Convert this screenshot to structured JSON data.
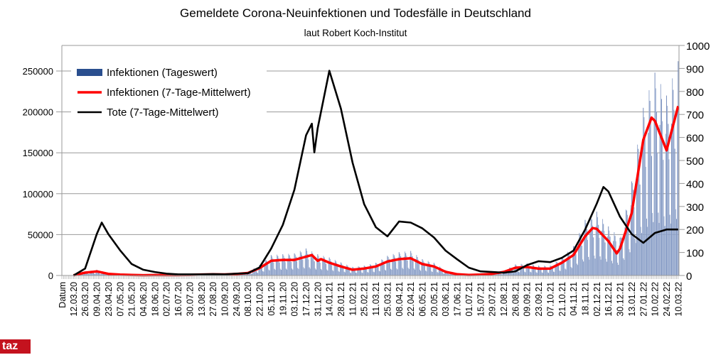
{
  "chart_data": {
    "type": "bar+line",
    "title": "Gemeldete Corona-Neuinfektionen und Todesfälle in Deutschland",
    "subtitle": "laut Robert Koch-Institut",
    "xlabel": "Datum",
    "xlim": [
      "27.02.20",
      "11.03.22"
    ],
    "ylim_left": [
      0,
      281250
    ],
    "ylim_right": [
      0,
      1000
    ],
    "yticks_left": [
      0,
      50000,
      100000,
      150000,
      200000,
      250000
    ],
    "yticks_right": [
      0,
      100,
      200,
      300,
      400,
      500,
      600,
      700,
      800,
      900,
      1000
    ],
    "xticks": [
      "12.03.20",
      "26.03.20",
      "09.04.20",
      "23.04.20",
      "07.05.20",
      "21.05.20",
      "04.06.20",
      "18.06.20",
      "02.07.20",
      "16.07.20",
      "30.07.20",
      "13.08.20",
      "27.08.20",
      "10.09.20",
      "24.09.20",
      "08.10.20",
      "22.10.20",
      "05.11.20",
      "19.11.20",
      "03.12.20",
      "17.12.20",
      "31.12.20",
      "14.01.21",
      "28.01.21",
      "11.02.21",
      "25.02.21",
      "11.03.21",
      "25.03.21",
      "08.04.21",
      "22.04.21",
      "06.05.21",
      "20.05.21",
      "03.06.21",
      "17.06.21",
      "01.07.21",
      "15.07.21",
      "29.07.21",
      "12.08.21",
      "26.08.21",
      "09.09.21",
      "23.09.21",
      "07.10.21",
      "21.10.21",
      "04.11.21",
      "18.11.21",
      "02.12.21",
      "16.12.21",
      "30.12.21",
      "13.01.22",
      "27.01.22",
      "10.02.22",
      "24.02.22",
      "10.03.22"
    ],
    "grid": true,
    "legend_position": "top-left",
    "series": [
      {
        "name": "Infektionen (Tageswert)",
        "type": "bar",
        "axis": "left",
        "color": "#2a4f8f",
        "points": [
          [
            "12.03.20",
            500
          ],
          [
            "26.03.20",
            5000
          ],
          [
            "09.04.20",
            7000
          ],
          [
            "23.04.20",
            3000
          ],
          [
            "07.05.20",
            1500
          ],
          [
            "21.05.20",
            900
          ],
          [
            "04.06.20",
            500
          ],
          [
            "18.06.20",
            700
          ],
          [
            "02.07.20",
            600
          ],
          [
            "16.07.20",
            650
          ],
          [
            "30.07.20",
            1000
          ],
          [
            "13.08.20",
            1700
          ],
          [
            "27.08.20",
            2000
          ],
          [
            "10.09.20",
            1900
          ],
          [
            "24.09.20",
            2600
          ],
          [
            "08.10.20",
            4300
          ],
          [
            "22.10.20",
            13000
          ],
          [
            "05.11.20",
            25000
          ],
          [
            "19.11.20",
            26000
          ],
          [
            "03.12.20",
            27000
          ],
          [
            "17.12.20",
            33000
          ],
          [
            "31.12.20",
            26000
          ],
          [
            "14.01.21",
            22000
          ],
          [
            "28.01.21",
            16000
          ],
          [
            "11.02.21",
            10500
          ],
          [
            "25.02.21",
            12000
          ],
          [
            "11.03.21",
            15500
          ],
          [
            "25.03.21",
            24000
          ],
          [
            "08.04.21",
            28500
          ],
          [
            "22.04.21",
            30000
          ],
          [
            "06.05.21",
            20000
          ],
          [
            "20.05.21",
            15500
          ],
          [
            "03.06.21",
            6500
          ],
          [
            "17.06.21",
            2200
          ],
          [
            "01.07.21",
            1000
          ],
          [
            "15.07.21",
            1500
          ],
          [
            "29.07.21",
            3000
          ],
          [
            "12.08.21",
            6000
          ],
          [
            "26.08.21",
            13500
          ],
          [
            "09.09.21",
            15000
          ],
          [
            "23.09.21",
            12000
          ],
          [
            "07.10.21",
            12000
          ],
          [
            "21.10.21",
            22000
          ],
          [
            "04.11.21",
            36000
          ],
          [
            "18.11.21",
            68000
          ],
          [
            "02.12.21",
            78000
          ],
          [
            "16.12.21",
            60000
          ],
          [
            "30.12.21",
            46000
          ],
          [
            "13.01.22",
            115000
          ],
          [
            "27.01.22",
            205000
          ],
          [
            "10.02.22",
            248000
          ],
          [
            "24.02.22",
            220000
          ],
          [
            "10.03.22",
            262000
          ]
        ]
      },
      {
        "name": "Infektionen (7-Tage-Mittelwert)",
        "type": "line",
        "axis": "left",
        "color": "#ff0000",
        "points": [
          [
            "12.03.20",
            300
          ],
          [
            "26.03.20",
            3500
          ],
          [
            "09.04.20",
            5000
          ],
          [
            "23.04.20",
            2000
          ],
          [
            "07.05.20",
            1000
          ],
          [
            "21.05.20",
            600
          ],
          [
            "04.06.20",
            350
          ],
          [
            "18.06.20",
            500
          ],
          [
            "02.07.20",
            400
          ],
          [
            "16.07.20",
            450
          ],
          [
            "30.07.20",
            700
          ],
          [
            "13.08.20",
            1200
          ],
          [
            "27.08.20",
            1400
          ],
          [
            "10.09.20",
            1300
          ],
          [
            "24.09.20",
            1800
          ],
          [
            "08.10.20",
            3000
          ],
          [
            "22.10.20",
            9000
          ],
          [
            "05.11.20",
            18000
          ],
          [
            "19.11.20",
            19000
          ],
          [
            "03.12.20",
            19000
          ],
          [
            "17.12.20",
            23000
          ],
          [
            "24.12.20",
            25000
          ],
          [
            "31.12.20",
            18000
          ],
          [
            "04.01.21",
            20000
          ],
          [
            "14.01.21",
            15600
          ],
          [
            "28.01.21",
            11000
          ],
          [
            "11.02.21",
            7000
          ],
          [
            "25.02.21",
            8500
          ],
          [
            "11.03.21",
            11000
          ],
          [
            "25.03.21",
            17000
          ],
          [
            "08.04.21",
            20000
          ],
          [
            "22.04.21",
            21000
          ],
          [
            "06.05.21",
            14000
          ],
          [
            "20.05.21",
            11000
          ],
          [
            "03.06.21",
            4500
          ],
          [
            "17.06.21",
            1500
          ],
          [
            "01.07.21",
            700
          ],
          [
            "15.07.21",
            1000
          ],
          [
            "29.07.21",
            2000
          ],
          [
            "12.08.21",
            4300
          ],
          [
            "26.08.21",
            9500
          ],
          [
            "09.09.21",
            10400
          ],
          [
            "23.09.21",
            8300
          ],
          [
            "07.10.21",
            8500
          ],
          [
            "21.10.21",
            15600
          ],
          [
            "04.11.21",
            25000
          ],
          [
            "18.11.21",
            48000
          ],
          [
            "27.11.21",
            58000
          ],
          [
            "02.12.21",
            57000
          ],
          [
            "16.12.21",
            42000
          ],
          [
            "26.12.21",
            27000
          ],
          [
            "30.12.21",
            33000
          ],
          [
            "13.01.22",
            76000
          ],
          [
            "27.01.22",
            166000
          ],
          [
            "06.02.22",
            193000
          ],
          [
            "10.02.22",
            189000
          ],
          [
            "24.02.22",
            153000
          ],
          [
            "10.03.22",
            207000
          ]
        ]
      },
      {
        "name": "Tote (7-Tage-Mittelwert)",
        "type": "line",
        "axis": "right",
        "color": "#000000",
        "points": [
          [
            "12.03.20",
            0
          ],
          [
            "26.03.20",
            30
          ],
          [
            "09.04.20",
            180
          ],
          [
            "15.04.20",
            230
          ],
          [
            "23.04.20",
            180
          ],
          [
            "07.05.20",
            110
          ],
          [
            "21.05.20",
            50
          ],
          [
            "04.06.20",
            25
          ],
          [
            "18.06.20",
            15
          ],
          [
            "02.07.20",
            8
          ],
          [
            "16.07.20",
            5
          ],
          [
            "30.07.20",
            5
          ],
          [
            "13.08.20",
            5
          ],
          [
            "27.08.20",
            6
          ],
          [
            "10.09.20",
            5
          ],
          [
            "24.09.20",
            8
          ],
          [
            "08.10.20",
            10
          ],
          [
            "22.10.20",
            35
          ],
          [
            "05.11.20",
            117
          ],
          [
            "19.11.20",
            220
          ],
          [
            "03.12.20",
            373
          ],
          [
            "17.12.20",
            610
          ],
          [
            "24.12.20",
            660
          ],
          [
            "27.12.20",
            535
          ],
          [
            "31.12.20",
            640
          ],
          [
            "14.01.21",
            890
          ],
          [
            "28.01.21",
            725
          ],
          [
            "11.02.21",
            490
          ],
          [
            "25.02.21",
            310
          ],
          [
            "11.03.21",
            210
          ],
          [
            "25.03.21",
            170
          ],
          [
            "08.04.21",
            235
          ],
          [
            "22.04.21",
            230
          ],
          [
            "06.05.21",
            205
          ],
          [
            "20.05.21",
            165
          ],
          [
            "03.06.21",
            108
          ],
          [
            "17.06.21",
            70
          ],
          [
            "01.07.21",
            34
          ],
          [
            "15.07.21",
            18
          ],
          [
            "29.07.21",
            15
          ],
          [
            "12.08.21",
            12
          ],
          [
            "26.08.21",
            18
          ],
          [
            "09.09.21",
            45
          ],
          [
            "23.09.21",
            62
          ],
          [
            "07.10.21",
            58
          ],
          [
            "21.10.21",
            77
          ],
          [
            "04.11.21",
            108
          ],
          [
            "18.11.21",
            200
          ],
          [
            "02.12.21",
            312
          ],
          [
            "10.12.21",
            385
          ],
          [
            "16.12.21",
            365
          ],
          [
            "30.12.21",
            255
          ],
          [
            "13.01.22",
            180
          ],
          [
            "27.01.22",
            142
          ],
          [
            "10.02.22",
            185
          ],
          [
            "24.02.22",
            200
          ],
          [
            "10.03.22",
            200
          ]
        ]
      }
    ]
  },
  "logo": {
    "text": "taz"
  }
}
